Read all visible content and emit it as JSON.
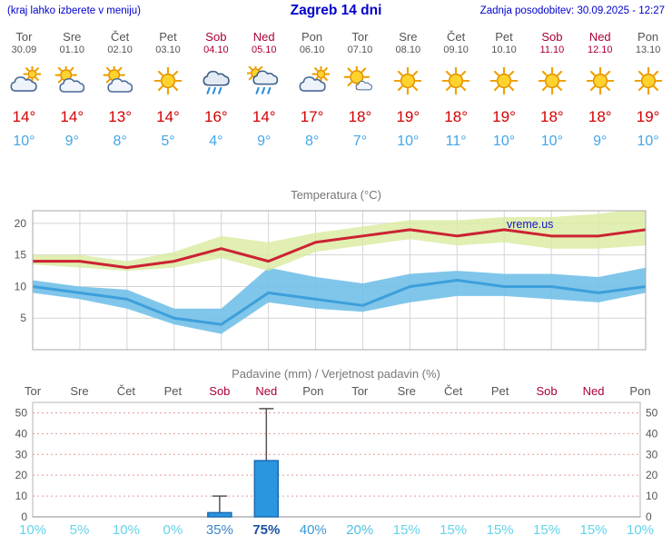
{
  "header": {
    "menu_hint": "(kraj lahko izberete v meniju)",
    "title": "Zagreb 14 dni",
    "last_update": "Zadnja posodobitev: 30.09.2025 - 12:27"
  },
  "colors": {
    "header_text": "#0000cc",
    "weekday_label": "#555555",
    "weekend_label": "#aa0033",
    "max_temp": "#d40000",
    "min_temp": "#44a6e8"
  },
  "days": [
    {
      "name": "Tor",
      "date": "30.09",
      "icon": "cloudy",
      "tmax": "14°",
      "tmin": "10°",
      "weekend": false
    },
    {
      "name": "Sre",
      "date": "01.10",
      "icon": "partly-cloudy",
      "tmax": "14°",
      "tmin": "9°",
      "weekend": false
    },
    {
      "name": "Čet",
      "date": "02.10",
      "icon": "partly-cloudy",
      "tmax": "13°",
      "tmin": "8°",
      "weekend": false
    },
    {
      "name": "Pet",
      "date": "03.10",
      "icon": "sunny",
      "tmax": "14°",
      "tmin": "5°",
      "weekend": false
    },
    {
      "name": "Sob",
      "date": "04.10",
      "icon": "rain",
      "tmax": "16°",
      "tmin": "4°",
      "weekend": true
    },
    {
      "name": "Ned",
      "date": "05.10",
      "icon": "sun-rain",
      "tmax": "14°",
      "tmin": "9°",
      "weekend": true
    },
    {
      "name": "Pon",
      "date": "06.10",
      "icon": "cloudy",
      "tmax": "17°",
      "tmin": "8°",
      "weekend": false
    },
    {
      "name": "Tor",
      "date": "07.10",
      "icon": "mostly-sunny",
      "tmax": "18°",
      "tmin": "7°",
      "weekend": false
    },
    {
      "name": "Sre",
      "date": "08.10",
      "icon": "sunny",
      "tmax": "19°",
      "tmin": "10°",
      "weekend": false
    },
    {
      "name": "Čet",
      "date": "09.10",
      "icon": "sunny",
      "tmax": "18°",
      "tmin": "11°",
      "weekend": false
    },
    {
      "name": "Pet",
      "date": "10.10",
      "icon": "sunny",
      "tmax": "19°",
      "tmin": "10°",
      "weekend": false
    },
    {
      "name": "Sob",
      "date": "11.10",
      "icon": "sunny",
      "tmax": "18°",
      "tmin": "10°",
      "weekend": true
    },
    {
      "name": "Ned",
      "date": "12.10",
      "icon": "sunny",
      "tmax": "18°",
      "tmin": "9°",
      "weekend": true
    },
    {
      "name": "Pon",
      "date": "13.10",
      "icon": "sunny",
      "tmax": "19°",
      "tmin": "10°",
      "weekend": false
    }
  ],
  "chart_data": [
    {
      "type": "line",
      "title": "Temperatura (°C)",
      "watermark": "vreme.us",
      "x_categories": [
        "Tor 30.09",
        "Sre 01.10",
        "Čet 02.10",
        "Pet 03.10",
        "Sob 04.10",
        "Ned 05.10",
        "Pon 06.10",
        "Tor 07.10",
        "Sre 08.10",
        "Čet 09.10",
        "Pet 10.10",
        "Sob 11.10",
        "Ned 12.10",
        "Pon 13.10"
      ],
      "ylim": [
        0,
        22
      ],
      "yticks": [
        5,
        10,
        15,
        20
      ],
      "grid_color": "#d4d4d4",
      "border_color": "#aaaaaa",
      "band_colors": {
        "max": "#d9ea9c",
        "min": "#72c0e8"
      },
      "series": [
        {
          "name": "max_temp",
          "color": "#cc2233",
          "values": [
            14,
            14,
            13,
            14,
            16,
            14,
            17,
            18,
            19,
            18,
            19,
            18,
            18,
            19
          ]
        },
        {
          "name": "min_temp",
          "color": "#3d9fdb",
          "values": [
            10,
            9,
            8,
            5,
            4,
            9,
            8,
            7,
            10,
            11,
            10,
            10,
            9,
            10
          ]
        },
        {
          "name": "max_temp_range_high",
          "values": [
            15,
            15,
            14,
            15.5,
            18,
            17,
            18.5,
            19.5,
            20.5,
            20.5,
            21,
            21,
            21.5,
            22.5
          ]
        },
        {
          "name": "max_temp_range_low",
          "values": [
            13.5,
            13,
            12.5,
            13,
            14.5,
            12.5,
            15.5,
            16.5,
            17.5,
            16.5,
            17,
            16,
            16,
            16.5
          ]
        },
        {
          "name": "min_temp_range_high",
          "values": [
            11,
            10,
            9.5,
            6.5,
            6.5,
            13,
            11.5,
            10.5,
            12,
            12.5,
            12,
            12,
            11.5,
            13
          ]
        },
        {
          "name": "min_temp_range_low",
          "values": [
            9,
            8,
            6.5,
            4,
            2.5,
            7.5,
            6.5,
            6,
            7.5,
            8.5,
            8.5,
            8,
            7.5,
            9
          ]
        }
      ]
    },
    {
      "type": "bar",
      "title": "Padavine (mm) / Verjetnost padavin (%)",
      "categories": [
        "Tor",
        "Sre",
        "Čet",
        "Pet",
        "Sob",
        "Ned",
        "Pon",
        "Tor",
        "Sre",
        "Čet",
        "Pet",
        "Sob",
        "Ned",
        "Pon"
      ],
      "weekend_flags": [
        false,
        false,
        false,
        false,
        true,
        true,
        false,
        false,
        false,
        false,
        false,
        true,
        true,
        false
      ],
      "precip_mm": [
        0,
        0,
        0,
        0,
        2,
        27,
        0,
        0,
        0,
        0,
        0,
        0,
        0,
        0
      ],
      "precip_max_mm": [
        0,
        0,
        0,
        0,
        10,
        52,
        0,
        0,
        0,
        0,
        0,
        0,
        0,
        0
      ],
      "probabilities": [
        {
          "label": "10%",
          "color": "#63d4ea",
          "strong": false
        },
        {
          "label": "5%",
          "color": "#63d4ea",
          "strong": false
        },
        {
          "label": "10%",
          "color": "#63d4ea",
          "strong": false
        },
        {
          "label": "0%",
          "color": "#63d4ea",
          "strong": false
        },
        {
          "label": "35%",
          "color": "#3c85c8",
          "strong": false
        },
        {
          "label": "75%",
          "color": "#1c4f9e",
          "strong": true
        },
        {
          "label": "40%",
          "color": "#3c99d6",
          "strong": false
        },
        {
          "label": "20%",
          "color": "#4fc0e2",
          "strong": false
        },
        {
          "label": "15%",
          "color": "#63d4ea",
          "strong": false
        },
        {
          "label": "15%",
          "color": "#63d4ea",
          "strong": false
        },
        {
          "label": "15%",
          "color": "#63d4ea",
          "strong": false
        },
        {
          "label": "15%",
          "color": "#63d4ea",
          "strong": false
        },
        {
          "label": "15%",
          "color": "#63d4ea",
          "strong": false
        },
        {
          "label": "10%",
          "color": "#63d4ea",
          "strong": false
        }
      ],
      "ylim": [
        0,
        55
      ],
      "yticks": [
        0,
        10,
        20,
        30,
        40,
        50
      ],
      "grid_color": "#e89a9a",
      "border_color": "#b5b5b5",
      "bar_color": "#2b96e0",
      "bar_stroke": "#1a6ab0"
    }
  ]
}
